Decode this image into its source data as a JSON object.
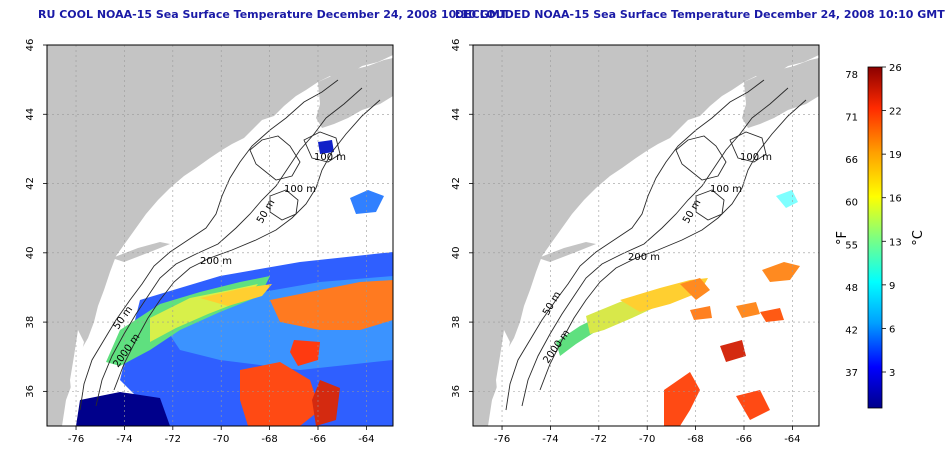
{
  "titles": {
    "left": "RU COOL NOAA-15 Sea Surface Temperature December 24, 2008 10:10 GMT",
    "right": "DECLOUDED NOAA-15 Sea Surface Temperature December 24, 2008 10:10 GMT"
  },
  "axes": {
    "lon_ticks": [
      "-76",
      "-74",
      "-72",
      "-70",
      "-68",
      "-66",
      "-64"
    ],
    "lat_ticks": [
      "36",
      "38",
      "40",
      "42",
      "44",
      "46"
    ],
    "lon_range": [
      -77.2,
      -62.9
    ],
    "lat_range": [
      35.0,
      46.0
    ]
  },
  "contour_labels": {
    "left": [
      "100 m",
      "100 m",
      "50 m",
      "200 m",
      "50 m",
      "2000 m"
    ],
    "right": [
      "100 m",
      "100 m",
      "50 m",
      "200 m",
      "50 m",
      "2000 m"
    ]
  },
  "colorbar": {
    "f_label": "°F",
    "c_label": "°C",
    "f_ticks": [
      "78",
      "71",
      "66",
      "60",
      "55",
      "48",
      "42",
      "37"
    ],
    "c_ticks": [
      "26",
      "22",
      "19",
      "16",
      "13",
      "9",
      "6",
      "3"
    ],
    "colors": [
      "#00008b",
      "#0000ff",
      "#00a0ff",
      "#00ffff",
      "#7fff7f",
      "#ffff00",
      "#ff9f00",
      "#ff2a00",
      "#8b0000"
    ]
  },
  "colors": {
    "land": "#c4c4c4",
    "ocean": "#ffffff",
    "title": "#1a1aa6",
    "grid": "#9a9a9a"
  }
}
